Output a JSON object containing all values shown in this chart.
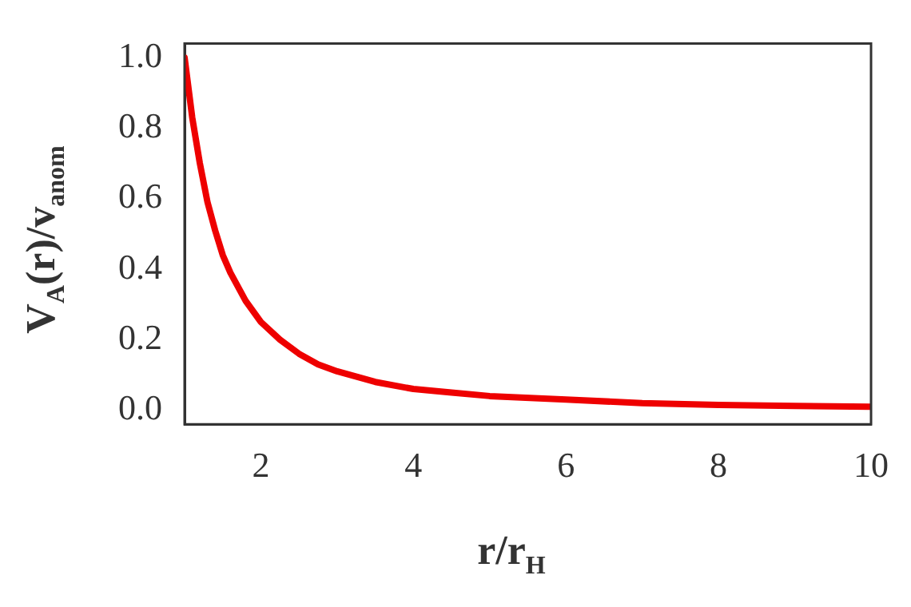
{
  "chart_data": {
    "type": "line",
    "xlabel": "r/r$_{H}$",
    "ylabel": "V$_{A}$(r)/v$_{anom}$",
    "x": [
      1,
      1.1,
      1.2,
      1.3,
      1.4,
      1.5,
      1.6,
      1.8,
      2,
      2.25,
      2.5,
      2.75,
      3,
      3.5,
      4,
      4.5,
      5,
      6,
      7,
      8,
      9,
      10
    ],
    "series": [
      {
        "color": "#ee0000",
        "values": [
          1.0,
          0.83,
          0.7,
          0.59,
          0.51,
          0.44,
          0.39,
          0.31,
          0.25,
          0.2,
          0.16,
          0.13,
          0.11,
          0.08,
          0.06,
          0.05,
          0.04,
          0.03,
          0.02,
          0.015,
          0.012,
          0.01
        ]
      }
    ],
    "xlim": [
      1,
      10
    ],
    "xticks": [
      2,
      4,
      6,
      8,
      10
    ],
    "ylim": [
      -0.04,
      1.04
    ],
    "yticks": [
      {
        "value": 0,
        "label": "0.0"
      },
      {
        "value": 0.2,
        "label": "0.2"
      },
      {
        "value": 0.4,
        "label": "0.4"
      },
      {
        "value": 0.6,
        "label": "0.6"
      },
      {
        "value": 0.8,
        "label": "0.8"
      },
      {
        "value": 1,
        "label": "1.0"
      }
    ],
    "grid": false,
    "legend": false,
    "marker": "none",
    "line_style": "solid"
  }
}
